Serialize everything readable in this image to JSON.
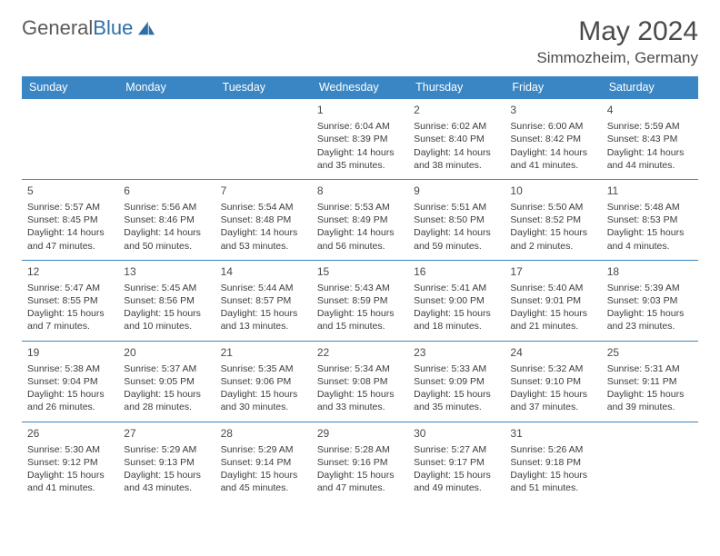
{
  "brand": {
    "name_gray": "General",
    "name_blue": "Blue"
  },
  "title": "May 2024",
  "location": "Simmozheim, Germany",
  "colors": {
    "header_bg": "#3a86c4",
    "header_fg": "#ffffff",
    "cell_border": "#3a86c4",
    "text": "#3c3c3c",
    "brand_gray": "#5a5a5a",
    "brand_blue": "#2f6fa8"
  },
  "day_names": [
    "Sunday",
    "Monday",
    "Tuesday",
    "Wednesday",
    "Thursday",
    "Friday",
    "Saturday"
  ],
  "weeks": [
    [
      null,
      null,
      null,
      {
        "n": "1",
        "sr": "6:04 AM",
        "ss": "8:39 PM",
        "dl": "14 hours and 35 minutes."
      },
      {
        "n": "2",
        "sr": "6:02 AM",
        "ss": "8:40 PM",
        "dl": "14 hours and 38 minutes."
      },
      {
        "n": "3",
        "sr": "6:00 AM",
        "ss": "8:42 PM",
        "dl": "14 hours and 41 minutes."
      },
      {
        "n": "4",
        "sr": "5:59 AM",
        "ss": "8:43 PM",
        "dl": "14 hours and 44 minutes."
      }
    ],
    [
      {
        "n": "5",
        "sr": "5:57 AM",
        "ss": "8:45 PM",
        "dl": "14 hours and 47 minutes."
      },
      {
        "n": "6",
        "sr": "5:56 AM",
        "ss": "8:46 PM",
        "dl": "14 hours and 50 minutes."
      },
      {
        "n": "7",
        "sr": "5:54 AM",
        "ss": "8:48 PM",
        "dl": "14 hours and 53 minutes."
      },
      {
        "n": "8",
        "sr": "5:53 AM",
        "ss": "8:49 PM",
        "dl": "14 hours and 56 minutes."
      },
      {
        "n": "9",
        "sr": "5:51 AM",
        "ss": "8:50 PM",
        "dl": "14 hours and 59 minutes."
      },
      {
        "n": "10",
        "sr": "5:50 AM",
        "ss": "8:52 PM",
        "dl": "15 hours and 2 minutes."
      },
      {
        "n": "11",
        "sr": "5:48 AM",
        "ss": "8:53 PM",
        "dl": "15 hours and 4 minutes."
      }
    ],
    [
      {
        "n": "12",
        "sr": "5:47 AM",
        "ss": "8:55 PM",
        "dl": "15 hours and 7 minutes."
      },
      {
        "n": "13",
        "sr": "5:45 AM",
        "ss": "8:56 PM",
        "dl": "15 hours and 10 minutes."
      },
      {
        "n": "14",
        "sr": "5:44 AM",
        "ss": "8:57 PM",
        "dl": "15 hours and 13 minutes."
      },
      {
        "n": "15",
        "sr": "5:43 AM",
        "ss": "8:59 PM",
        "dl": "15 hours and 15 minutes."
      },
      {
        "n": "16",
        "sr": "5:41 AM",
        "ss": "9:00 PM",
        "dl": "15 hours and 18 minutes."
      },
      {
        "n": "17",
        "sr": "5:40 AM",
        "ss": "9:01 PM",
        "dl": "15 hours and 21 minutes."
      },
      {
        "n": "18",
        "sr": "5:39 AM",
        "ss": "9:03 PM",
        "dl": "15 hours and 23 minutes."
      }
    ],
    [
      {
        "n": "19",
        "sr": "5:38 AM",
        "ss": "9:04 PM",
        "dl": "15 hours and 26 minutes."
      },
      {
        "n": "20",
        "sr": "5:37 AM",
        "ss": "9:05 PM",
        "dl": "15 hours and 28 minutes."
      },
      {
        "n": "21",
        "sr": "5:35 AM",
        "ss": "9:06 PM",
        "dl": "15 hours and 30 minutes."
      },
      {
        "n": "22",
        "sr": "5:34 AM",
        "ss": "9:08 PM",
        "dl": "15 hours and 33 minutes."
      },
      {
        "n": "23",
        "sr": "5:33 AM",
        "ss": "9:09 PM",
        "dl": "15 hours and 35 minutes."
      },
      {
        "n": "24",
        "sr": "5:32 AM",
        "ss": "9:10 PM",
        "dl": "15 hours and 37 minutes."
      },
      {
        "n": "25",
        "sr": "5:31 AM",
        "ss": "9:11 PM",
        "dl": "15 hours and 39 minutes."
      }
    ],
    [
      {
        "n": "26",
        "sr": "5:30 AM",
        "ss": "9:12 PM",
        "dl": "15 hours and 41 minutes."
      },
      {
        "n": "27",
        "sr": "5:29 AM",
        "ss": "9:13 PM",
        "dl": "15 hours and 43 minutes."
      },
      {
        "n": "28",
        "sr": "5:29 AM",
        "ss": "9:14 PM",
        "dl": "15 hours and 45 minutes."
      },
      {
        "n": "29",
        "sr": "5:28 AM",
        "ss": "9:16 PM",
        "dl": "15 hours and 47 minutes."
      },
      {
        "n": "30",
        "sr": "5:27 AM",
        "ss": "9:17 PM",
        "dl": "15 hours and 49 minutes."
      },
      {
        "n": "31",
        "sr": "5:26 AM",
        "ss": "9:18 PM",
        "dl": "15 hours and 51 minutes."
      },
      null
    ]
  ],
  "labels": {
    "sunrise_prefix": "Sunrise: ",
    "sunset_prefix": "Sunset: ",
    "daylight_prefix": "Daylight: "
  }
}
